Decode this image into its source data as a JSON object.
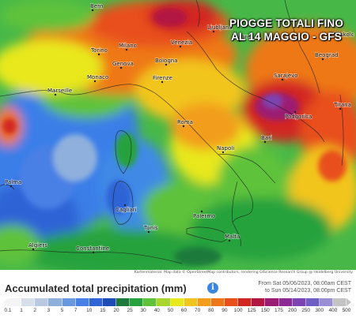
{
  "overlay_title": {
    "line1": "PIOGGE TOTALI FINO",
    "line2": "AL 14 MAGGIO - GFS"
  },
  "attribution": "Kartenmaterial: Map data © OpenStreetMap contributors, rendering GIScience Research Group @ Heidelberg University",
  "cities": {
    "bern": "Bern",
    "milano": "Milano",
    "torino": "Torino",
    "venezia": "Venezia",
    "bologna": "Bologna",
    "genova": "Genova",
    "firenze": "Firenze",
    "monaco": "Monaco",
    "marseille": "Marseille",
    "ljubljana": "Ljubljana",
    "zagreb": "Zagreb",
    "sarajevo": "Sarajevo",
    "podgorica": "Podgorica",
    "beograd": "Beograd",
    "tirana": "Tirana",
    "roma": "Roma",
    "napoli": "Napoli",
    "bari": "Bari",
    "palermo": "Palermo",
    "cagliari": "Cagliari",
    "palma": "Palma",
    "algiers": "Algiers",
    "constantine": "Constantine",
    "tunis": "Tunis",
    "malta": "Malta",
    "miskolc": "Miskolc"
  },
  "legend": {
    "title": "Accumulated total precipitation (mm)",
    "info_icon": "info-icon",
    "date_from": "From Sat 05/06/2023, 08:00am CEST",
    "date_to": "to Sun 05/14/2023, 08:00pm CEST",
    "ticks": [
      "0.1",
      "1",
      "2",
      "3",
      "5",
      "7",
      "10",
      "15",
      "20",
      "25",
      "30",
      "40",
      "50",
      "60",
      "70",
      "80",
      "90",
      "100",
      "125",
      "150",
      "175",
      "200",
      "250",
      "300",
      "400",
      "500"
    ],
    "colors": [
      "#f4f4f4",
      "#d7dfe9",
      "#b8c9e1",
      "#8fb0dd",
      "#6a98df",
      "#4a80e6",
      "#2f63d6",
      "#1e4bb5",
      "#1d7a3a",
      "#28a23c",
      "#5fc23a",
      "#a8d62c",
      "#e8e81f",
      "#f2c51d",
      "#f29d1b",
      "#ee7819",
      "#e84f1a",
      "#d22624",
      "#b21642",
      "#9b1a72",
      "#8d2a96",
      "#7b44b2",
      "#6d5fc4",
      "#9a8fd2",
      "#c4c4c4"
    ]
  }
}
